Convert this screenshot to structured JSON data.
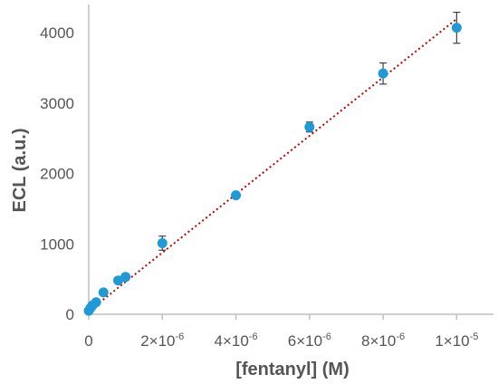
{
  "chart_data": {
    "type": "scatter",
    "xlabel": "[fentanyl] (M)",
    "ylabel": "ECL (a.u.)",
    "xlim": [
      0,
      1.1e-05
    ],
    "ylim": [
      0,
      4400
    ],
    "x_ticks": [
      {
        "value": 0,
        "label": "0"
      },
      {
        "value": 2e-06,
        "label": "2×10",
        "exp": "-6"
      },
      {
        "value": 4e-06,
        "label": "4×10",
        "exp": "-6"
      },
      {
        "value": 6e-06,
        "label": "6×10",
        "exp": "-6"
      },
      {
        "value": 8e-06,
        "label": "8×10",
        "exp": "-6"
      },
      {
        "value": 1e-05,
        "label": "1×10",
        "exp": "-5"
      }
    ],
    "y_ticks": [
      {
        "value": 0,
        "label": "0"
      },
      {
        "value": 1000,
        "label": "1000"
      },
      {
        "value": 2000,
        "label": "2000"
      },
      {
        "value": 3000,
        "label": "3000"
      },
      {
        "value": 4000,
        "label": "4000"
      }
    ],
    "series": [
      {
        "color": "#1f9ad6",
        "points": [
          {
            "x": 0,
            "y": 50,
            "err": 15
          },
          {
            "x": 5e-08,
            "y": 90,
            "err": 20
          },
          {
            "x": 1e-07,
            "y": 125,
            "err": 20
          },
          {
            "x": 2e-07,
            "y": 170,
            "err": 25
          },
          {
            "x": 4e-07,
            "y": 310,
            "err": 30
          },
          {
            "x": 8e-07,
            "y": 480,
            "err": 40
          },
          {
            "x": 1e-06,
            "y": 530,
            "err": 40
          },
          {
            "x": 2e-06,
            "y": 1010,
            "err": 100
          },
          {
            "x": 4e-06,
            "y": 1690,
            "err": 30
          },
          {
            "x": 6e-06,
            "y": 2660,
            "err": 70
          },
          {
            "x": 8e-06,
            "y": 3420,
            "err": 150
          },
          {
            "x": 1e-05,
            "y": 4070,
            "err": 220
          }
        ]
      }
    ],
    "trendline": {
      "style": "dotted",
      "color": "#c00000",
      "slope": 415000000.0,
      "intercept": 45
    },
    "grid": false,
    "legend": "none"
  }
}
